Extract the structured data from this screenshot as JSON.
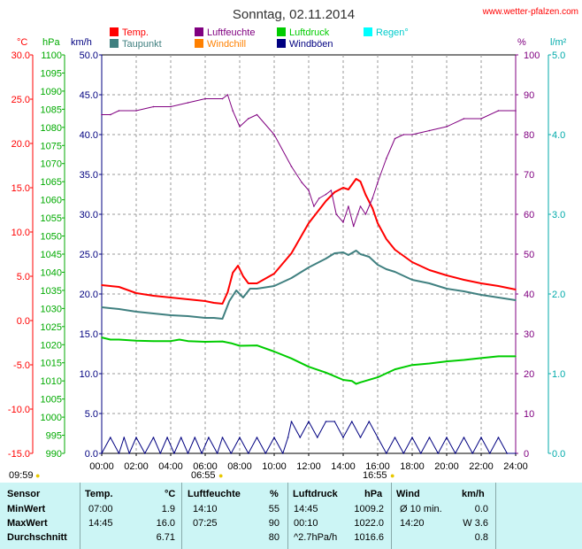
{
  "title": "Sonntag, 02.11.2014",
  "site": "www.wetter-pfalzen.com",
  "legend": [
    {
      "label": "Temp.",
      "color": "#ff0000"
    },
    {
      "label": "Luftfeuchte",
      "color": "#800080"
    },
    {
      "label": "Luftdruck",
      "color": "#00cc00"
    },
    {
      "label": "Regen°",
      "color": "#00ffff"
    },
    {
      "label": "Taupunkt",
      "color": "#408080"
    },
    {
      "label": "Windchill",
      "color": "#ff8000"
    },
    {
      "label": "Windböen",
      "color": "#000080"
    }
  ],
  "axis_units": {
    "temp": "°C",
    "pressure": "hPa",
    "wind": "km/h",
    "humidity": "%",
    "rain": "l/m²"
  },
  "sunrise": "06:55",
  "sunset": "16:55",
  "moon_start": "09:59",
  "chart_data": {
    "type": "line",
    "x_unit": "hours",
    "xlim": [
      0,
      24
    ],
    "x_ticks": [
      "00:00",
      "02:00",
      "04:00",
      "06:00",
      "08:00",
      "10:00",
      "12:00",
      "14:00",
      "16:00",
      "18:00",
      "20:00",
      "22:00",
      "24:00"
    ],
    "axes": {
      "temp": {
        "ylim": [
          -15,
          30
        ],
        "ticks": [
          "30.0",
          "25.0",
          "20.0",
          "15.0",
          "10.0",
          "5.0",
          "0.0",
          "-5.0",
          "-10.0",
          "-15.0"
        ]
      },
      "pressure": {
        "ylim": [
          990,
          1100
        ],
        "ticks": [
          "1100",
          "1095",
          "1090",
          "1085",
          "1080",
          "1075",
          "1070",
          "1065",
          "1060",
          "1055",
          "1050",
          "1045",
          "1040",
          "1035",
          "1030",
          "1025",
          "1020",
          "1015",
          "1010",
          "1005",
          "1000",
          "995",
          "990"
        ]
      },
      "wind": {
        "ylim": [
          0,
          50
        ],
        "ticks": [
          "50.0",
          "45.0",
          "40.0",
          "35.0",
          "30.0",
          "25.0",
          "20.0",
          "15.0",
          "10.0",
          "5.0",
          "0.0"
        ]
      },
      "humidity": {
        "ylim": [
          0,
          100
        ],
        "ticks": [
          "100",
          "90",
          "80",
          "70",
          "60",
          "50",
          "40",
          "30",
          "20",
          "10",
          "0"
        ]
      },
      "rain": {
        "ylim": [
          0,
          5
        ],
        "ticks": [
          "5.0",
          "4.0",
          "3.0",
          "2.0",
          "1.0",
          "0.0"
        ]
      }
    },
    "series": [
      {
        "name": "Temp.",
        "axis": "temp",
        "color": "#ff0000",
        "x": [
          0,
          0.5,
          1,
          2,
          3,
          4,
          5,
          6,
          6.5,
          7,
          7.3,
          7.6,
          7.9,
          8.2,
          8.5,
          9,
          10,
          11,
          12,
          13,
          13.5,
          14,
          14.3,
          14.75,
          15,
          15.3,
          15.7,
          16,
          16.5,
          17,
          18,
          19,
          20,
          21,
          22,
          23,
          24
        ],
        "y": [
          4.0,
          3.9,
          3.8,
          3.1,
          2.8,
          2.6,
          2.4,
          2.2,
          2.0,
          1.9,
          3.2,
          5.4,
          6.2,
          5.0,
          4.2,
          4.2,
          5.3,
          7.6,
          11.0,
          13.5,
          14.5,
          15.0,
          14.8,
          16.0,
          15.7,
          14.2,
          12.7,
          11.0,
          9.2,
          8.0,
          6.6,
          5.7,
          5.1,
          4.6,
          4.2,
          3.9,
          3.5
        ]
      },
      {
        "name": "Taupunkt",
        "axis": "temp",
        "color": "#408080",
        "x": [
          0,
          1,
          2,
          3,
          4,
          5,
          6,
          6.5,
          7,
          7.4,
          7.8,
          8.2,
          8.6,
          9,
          10,
          11,
          12,
          13,
          13.5,
          14,
          14.3,
          14.75,
          15,
          15.5,
          16,
          16.5,
          17,
          18,
          19,
          20,
          21,
          22,
          23,
          24
        ],
        "y": [
          1.5,
          1.3,
          1.0,
          0.8,
          0.6,
          0.5,
          0.3,
          0.3,
          0.2,
          2.2,
          3.4,
          2.6,
          3.6,
          3.6,
          3.9,
          4.8,
          6.0,
          7.0,
          7.6,
          7.7,
          7.4,
          7.9,
          7.5,
          7.2,
          6.3,
          5.8,
          5.5,
          4.6,
          4.2,
          3.6,
          3.3,
          2.9,
          2.6,
          2.3
        ]
      },
      {
        "name": "Luftfeuchte",
        "axis": "humidity",
        "color": "#800080",
        "x": [
          0,
          0.5,
          1,
          2,
          3,
          4,
          5,
          6,
          7,
          7.3,
          7.6,
          8,
          8.5,
          9,
          10,
          11,
          11.6,
          12,
          12.3,
          12.6,
          13,
          13.3,
          13.6,
          14,
          14.3,
          14.6,
          15,
          15.3,
          15.7,
          16,
          16.5,
          17,
          17.5,
          18,
          19,
          20,
          21,
          22,
          23,
          24
        ],
        "y": [
          85,
          85,
          86,
          86,
          87,
          87,
          88,
          89,
          89,
          90,
          86,
          82,
          84,
          85,
          80,
          72,
          68,
          66,
          62,
          64,
          65,
          66,
          60,
          58,
          62,
          57,
          62,
          60,
          64,
          68,
          74,
          79,
          80,
          80,
          81,
          82,
          84,
          84,
          86,
          86
        ]
      },
      {
        "name": "Luftdruck",
        "axis": "pressure",
        "color": "#00cc00",
        "x": [
          0,
          0.5,
          1,
          2,
          3,
          4,
          4.5,
          5,
          6,
          7,
          7.5,
          8,
          9,
          10,
          11,
          12,
          13,
          14,
          14.5,
          14.75,
          15,
          16,
          17,
          18,
          19,
          20,
          21,
          22,
          23,
          24
        ],
        "y": [
          1022.0,
          1021.4,
          1021.4,
          1021.1,
          1021.0,
          1021.0,
          1021.4,
          1021.0,
          1020.8,
          1020.9,
          1020.4,
          1019.7,
          1019.8,
          1018.1,
          1016.2,
          1013.9,
          1012.3,
          1010.3,
          1010.0,
          1009.2,
          1009.6,
          1011.0,
          1013.2,
          1014.4,
          1014.8,
          1015.4,
          1015.8,
          1016.3,
          1016.8,
          1016.8
        ]
      },
      {
        "name": "Windböen",
        "axis": "wind",
        "color": "#000080",
        "x": [
          0,
          0.5,
          1,
          1.3,
          1.6,
          2,
          2.5,
          3,
          3.4,
          3.8,
          4.2,
          4.6,
          5,
          5.4,
          5.8,
          6.2,
          6.7,
          7,
          7.5,
          8,
          8.5,
          9,
          9.5,
          10,
          10.5,
          10.8,
          11,
          11.5,
          12,
          12.5,
          13,
          13.5,
          14,
          14.5,
          15,
          15.5,
          16,
          16.5,
          17,
          17.5,
          18,
          18.5,
          19,
          19.5,
          20,
          20.5,
          21,
          21.5,
          22,
          22.5,
          23,
          23.5,
          24
        ],
        "y": [
          0,
          2,
          0,
          2,
          0,
          2,
          0,
          2,
          0,
          2,
          0,
          2,
          0,
          2,
          0,
          2,
          0,
          2,
          0,
          2,
          0,
          2,
          0,
          2,
          0,
          2,
          4,
          2,
          4,
          2,
          4,
          4,
          2,
          4,
          2,
          4,
          2,
          0,
          2,
          0,
          2,
          0,
          2,
          0,
          2,
          0,
          2,
          0,
          2,
          0,
          2,
          0,
          0
        ]
      }
    ]
  },
  "table": {
    "headers": {
      "sensor": "Sensor",
      "temp": "Temp.",
      "temp_unit": "°C",
      "hum": "Luftfeuchte",
      "hum_unit": "%",
      "press": "Luftdruck",
      "press_unit": "hPa",
      "wind": "Wind",
      "wind_unit": "km/h"
    },
    "rows": [
      {
        "label": "MinWert",
        "t_time": "07:00",
        "t_val": "1.9",
        "h_time": "14:10",
        "h_val": "55",
        "p_time": "14:45",
        "p_val": "1009.2",
        "w_label": "Ø 10 min.",
        "w_val": "0.0"
      },
      {
        "label": "MaxWert",
        "t_time": "14:45",
        "t_val": "16.0",
        "h_time": "07:25",
        "h_val": "90",
        "p_time": "00:10",
        "p_val": "1022.0",
        "w_label": "14:20",
        "w_val": "W 3.6"
      },
      {
        "label": "Durchschnitt",
        "t_time": "",
        "t_val": "6.71",
        "h_time": "",
        "h_val": "80",
        "p_time": "^2.7hPa/h",
        "p_val": "1016.6",
        "w_label": "",
        "w_val": "0.8"
      }
    ]
  }
}
